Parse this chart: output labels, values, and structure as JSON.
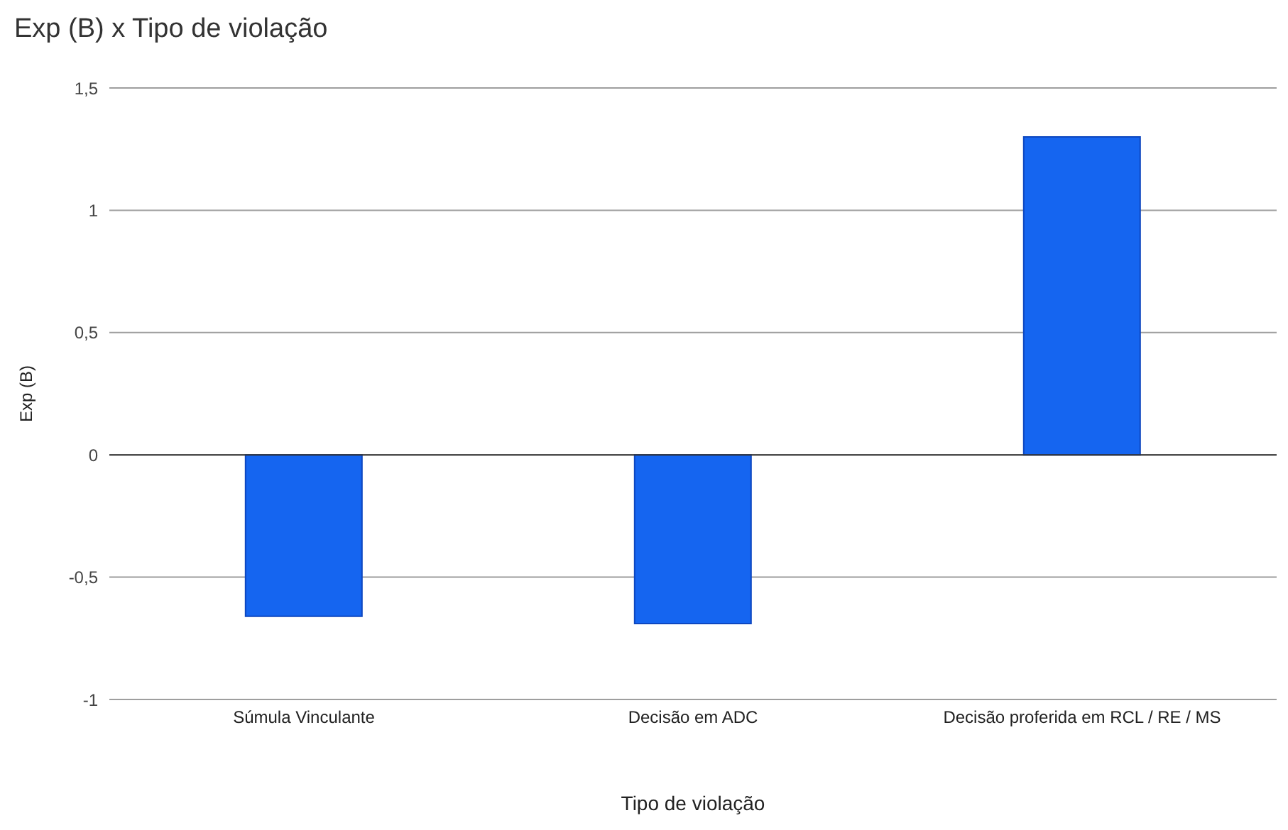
{
  "chart_data": {
    "type": "bar",
    "title": "Exp (B) x Tipo de violação",
    "xlabel": "Tipo de violação",
    "ylabel": "Exp (B)",
    "categories": [
      "Súmula Vinculante",
      "Decisão em ADC",
      "Decisão proferida em RCL / RE / MS"
    ],
    "values": [
      -0.66,
      -0.69,
      1.3
    ],
    "color": "#1565f0",
    "ylim": [
      -1,
      1.5
    ],
    "yticks": [
      {
        "value": -1,
        "label": "-1"
      },
      {
        "value": -0.5,
        "label": "-0,5"
      },
      {
        "value": 0,
        "label": "0"
      },
      {
        "value": 0.5,
        "label": "0,5"
      },
      {
        "value": 1,
        "label": "1"
      },
      {
        "value": 1.5,
        "label": "1,5"
      }
    ],
    "grid": "y",
    "legend": false
  }
}
